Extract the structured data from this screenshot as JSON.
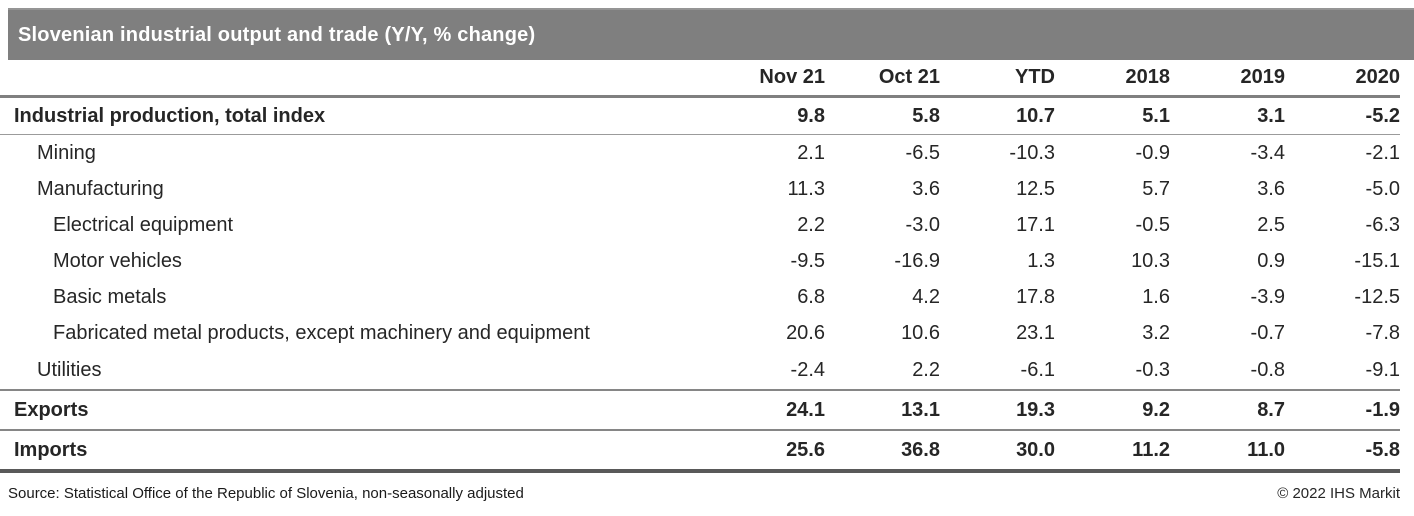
{
  "chart_data": {
    "type": "table",
    "title": "Slovenian industrial output and trade (Y/Y, % change)",
    "columns": [
      "Nov 21",
      "Oct 21",
      "YTD",
      "2018",
      "2019",
      "2020"
    ],
    "rows": [
      {
        "label": "Industrial production, total index",
        "indent": 0,
        "emphasis": true,
        "rule": "light",
        "values": [
          "9.8",
          "5.8",
          "10.7",
          "5.1",
          "3.1",
          "-5.2"
        ]
      },
      {
        "label": "Mining",
        "indent": 1,
        "emphasis": false,
        "rule": "none",
        "values": [
          "2.1",
          "-6.5",
          "-10.3",
          "-0.9",
          "-3.4",
          "-2.1"
        ]
      },
      {
        "label": "Manufacturing",
        "indent": 1,
        "emphasis": false,
        "rule": "none",
        "values": [
          "11.3",
          "3.6",
          "12.5",
          "5.7",
          "3.6",
          "-5.0"
        ]
      },
      {
        "label": "Electrical equipment",
        "indent": 2,
        "emphasis": false,
        "rule": "none",
        "values": [
          "2.2",
          "-3.0",
          "17.1",
          "-0.5",
          "2.5",
          "-6.3"
        ]
      },
      {
        "label": "Motor vehicles",
        "indent": 2,
        "emphasis": false,
        "rule": "none",
        "values": [
          "-9.5",
          "-16.9",
          "1.3",
          "10.3",
          "0.9",
          "-15.1"
        ]
      },
      {
        "label": "Basic metals",
        "indent": 2,
        "emphasis": false,
        "rule": "none",
        "values": [
          "6.8",
          "4.2",
          "17.8",
          "1.6",
          "-3.9",
          "-12.5"
        ]
      },
      {
        "label": "Fabricated metal products, except machinery and equipment",
        "indent": 2,
        "emphasis": false,
        "rule": "none",
        "values": [
          "20.6",
          "10.6",
          "23.1",
          "3.2",
          "-0.7",
          "-7.8"
        ]
      },
      {
        "label": "Utilities",
        "indent": 1,
        "emphasis": false,
        "rule": "medium",
        "values": [
          "-2.4",
          "2.2",
          "-6.1",
          "-0.3",
          "-0.8",
          "-9.1"
        ]
      },
      {
        "label": "Exports",
        "indent": 0,
        "emphasis": true,
        "rule": "medium",
        "values": [
          "24.1",
          "13.1",
          "19.3",
          "9.2",
          "8.7",
          "-1.9"
        ]
      },
      {
        "label": "Imports",
        "indent": 0,
        "emphasis": true,
        "rule": "heavy",
        "values": [
          "25.6",
          "36.8",
          "30.0",
          "11.2",
          "11.0",
          "-5.8"
        ]
      }
    ],
    "source": "Source: Statistical Office of the Republic of Slovenia, non-seasonally adjusted",
    "copyright": "© 2022 IHS Markit",
    "layout_hints": {
      "legend": "none",
      "grid": "horizontal rules between section rows only"
    }
  },
  "colors": {
    "title_bar_bg": "#7f7f7f",
    "title_text": "#ffffff",
    "body_text": "#262626",
    "header_rule": "#808080",
    "heavy_rule": "#595959",
    "light_rule": "#9b9b9b"
  }
}
